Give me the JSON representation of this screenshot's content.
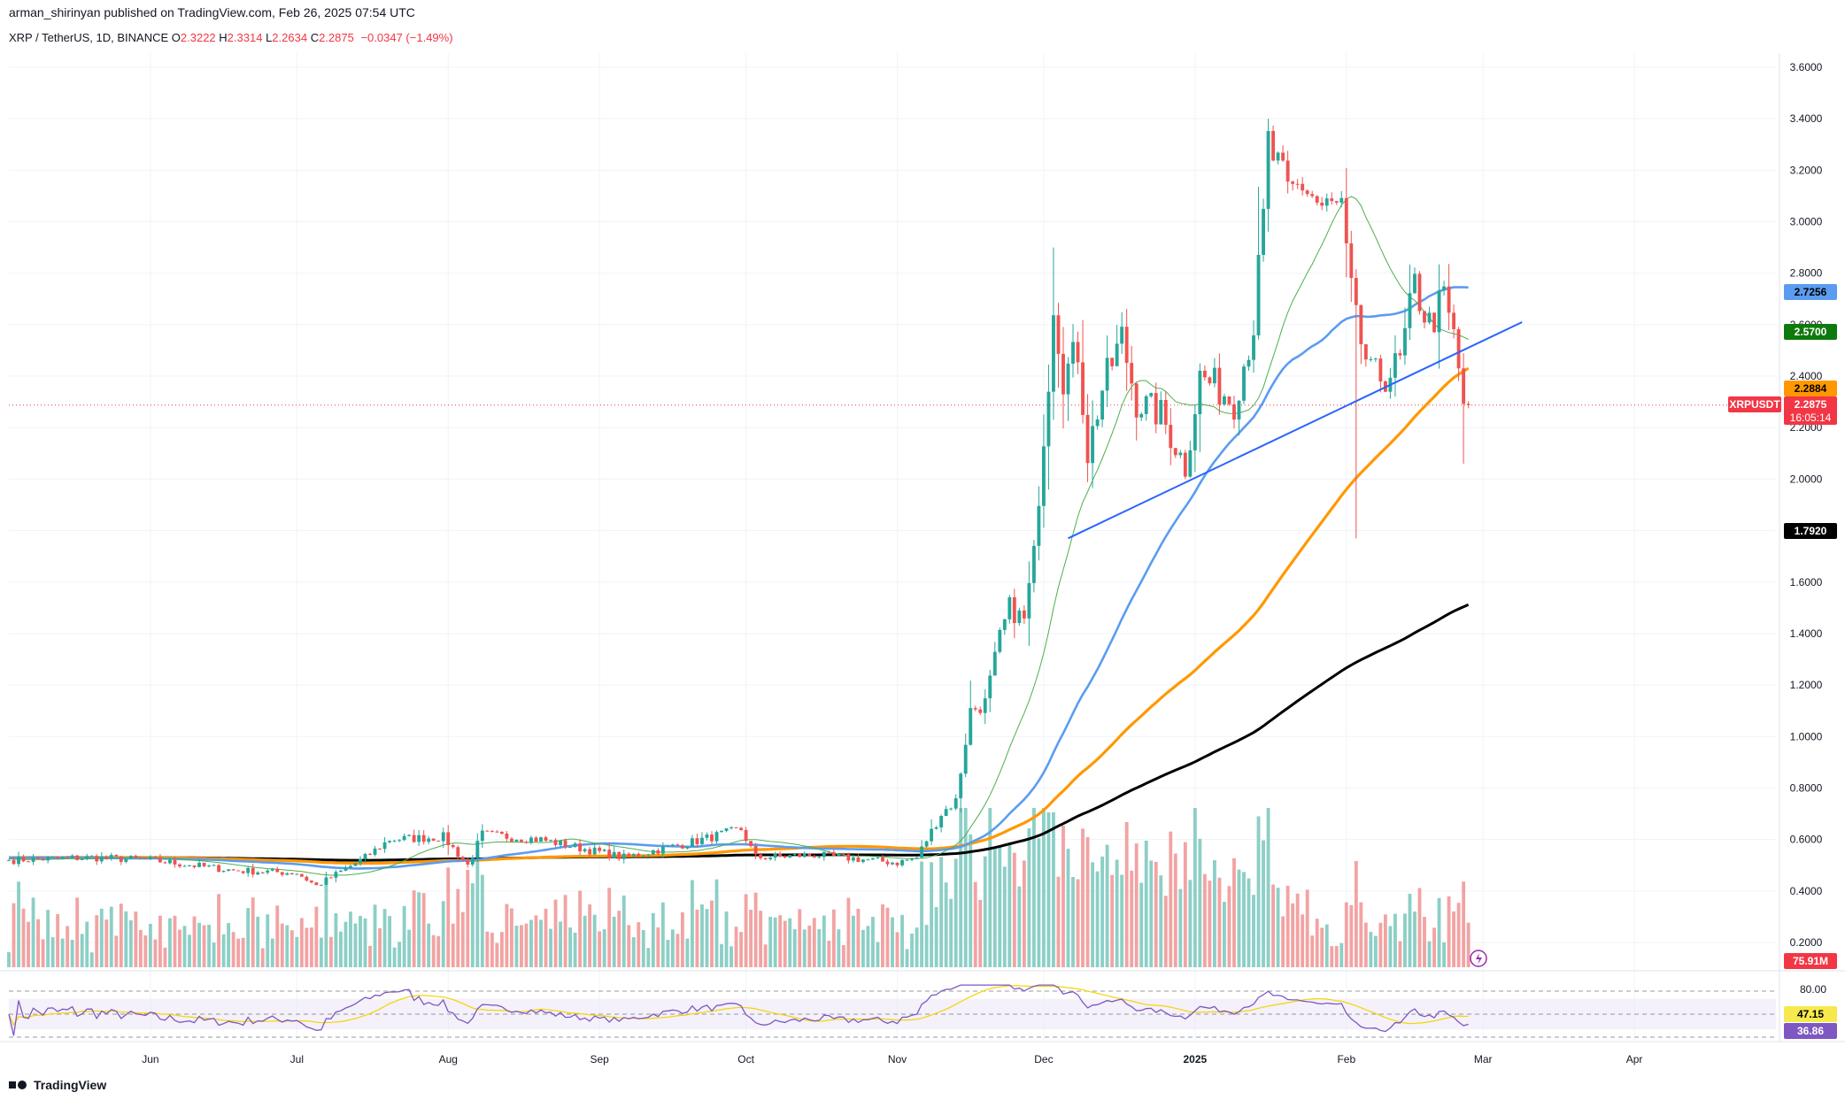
{
  "header": {
    "published": "arman_shirinyan published on TradingView.com, Feb 26, 2025 07:54 UTC",
    "symbol": "XRP / TetherUS, 1D, BINANCE",
    "o_label": "O",
    "o": "2.3222",
    "h_label": "H",
    "h": "2.3314",
    "l_label": "L",
    "l": "2.2634",
    "c_label": "C",
    "c": "2.2875",
    "change": "−0.0347 (−1.49%)"
  },
  "footer": {
    "brand": "TradingView"
  },
  "colors": {
    "up": "#26a69a",
    "down": "#ef5350",
    "vol_up": "#8ccfc6",
    "vol_down": "#f2a3a3",
    "ma20": "#4caf50",
    "ma50": "#5b9cf0",
    "ma100": "#ff9800",
    "ma200": "#000000",
    "trendline": "#2962ff",
    "rsi": "#7e57c2",
    "rsi_ma": "#f5d400"
  },
  "chart_data": {
    "type": "candlestick",
    "symbol": "XRPUSDT",
    "interval": "1D",
    "ylim": [
      0.0,
      3.72
    ],
    "y_ticks": [
      "0.2000",
      "0.4000",
      "0.6000",
      "0.8000",
      "1.0000",
      "1.2000",
      "1.4000",
      "1.6000",
      "1.8000",
      "2.0000",
      "2.2000",
      "2.4000",
      "2.6000",
      "2.8000",
      "3.0000",
      "3.2000",
      "3.4000",
      "3.6000"
    ],
    "x_labels": [
      {
        "label": "Jun",
        "date": "2024-06-01"
      },
      {
        "label": "Jul",
        "date": "2024-07-01"
      },
      {
        "label": "Aug",
        "date": "2024-08-01"
      },
      {
        "label": "Sep",
        "date": "2024-09-01"
      },
      {
        "label": "Oct",
        "date": "2024-10-01"
      },
      {
        "label": "Nov",
        "date": "2024-11-01"
      },
      {
        "label": "Dec",
        "date": "2024-12-01"
      },
      {
        "label": "2025",
        "date": "2025-01-01"
      },
      {
        "label": "Feb",
        "date": "2025-02-01"
      },
      {
        "label": "Mar",
        "date": "2025-03-01"
      },
      {
        "label": "Apr",
        "date": "2025-04-01"
      }
    ],
    "xlim": [
      "2024-05-03",
      "2025-04-30"
    ],
    "anchors": [
      {
        "date": "2024-05-03",
        "close": 0.52
      },
      {
        "date": "2024-05-20",
        "close": 0.53
      },
      {
        "date": "2024-06-01",
        "close": 0.52
      },
      {
        "date": "2024-06-18",
        "close": 0.48
      },
      {
        "date": "2024-07-01",
        "close": 0.47
      },
      {
        "date": "2024-07-05",
        "close": 0.42
      },
      {
        "date": "2024-07-15",
        "close": 0.53
      },
      {
        "date": "2024-07-20",
        "close": 0.6
      },
      {
        "date": "2024-07-31",
        "close": 0.61
      },
      {
        "date": "2024-08-05",
        "close": 0.5
      },
      {
        "date": "2024-08-08",
        "close": 0.62
      },
      {
        "date": "2024-08-20",
        "close": 0.6
      },
      {
        "date": "2024-09-06",
        "close": 0.53
      },
      {
        "date": "2024-09-20",
        "close": 0.59
      },
      {
        "date": "2024-09-30",
        "close": 0.64
      },
      {
        "date": "2024-10-03",
        "close": 0.53
      },
      {
        "date": "2024-10-15",
        "close": 0.54
      },
      {
        "date": "2024-11-01",
        "close": 0.51
      },
      {
        "date": "2024-11-05",
        "close": 0.53
      },
      {
        "date": "2024-11-10",
        "close": 0.7
      },
      {
        "date": "2024-11-13",
        "close": 0.75
      },
      {
        "date": "2024-11-16",
        "close": 1.1
      },
      {
        "date": "2024-11-19",
        "close": 1.13
      },
      {
        "date": "2024-11-22",
        "close": 1.38
      },
      {
        "date": "2024-11-24",
        "close": 1.5
      },
      {
        "date": "2024-11-27",
        "close": 1.45
      },
      {
        "date": "2024-11-29",
        "close": 1.7
      },
      {
        "date": "2024-11-30",
        "close": 1.95
      },
      {
        "date": "2024-12-02",
        "close": 2.4
      },
      {
        "date": "2024-12-03",
        "close": 2.7
      },
      {
        "date": "2024-12-05",
        "close": 2.4
      },
      {
        "date": "2024-12-08",
        "close": 2.5
      },
      {
        "date": "2024-12-10",
        "close": 2.1
      },
      {
        "date": "2024-12-13",
        "close": 2.35
      },
      {
        "date": "2024-12-17",
        "close": 2.55
      },
      {
        "date": "2024-12-20",
        "close": 2.3
      },
      {
        "date": "2024-12-25",
        "close": 2.25
      },
      {
        "date": "2024-12-30",
        "close": 2.05
      },
      {
        "date": "2025-01-02",
        "close": 2.4
      },
      {
        "date": "2025-01-06",
        "close": 2.35
      },
      {
        "date": "2025-01-09",
        "close": 2.3
      },
      {
        "date": "2025-01-13",
        "close": 2.6
      },
      {
        "date": "2025-01-15",
        "close": 3.0
      },
      {
        "date": "2025-01-16",
        "close": 3.3
      },
      {
        "date": "2025-01-18",
        "close": 3.2
      },
      {
        "date": "2025-01-20",
        "close": 3.1
      },
      {
        "date": "2025-01-23",
        "close": 3.15
      },
      {
        "date": "2025-01-27",
        "close": 3.05
      },
      {
        "date": "2025-01-31",
        "close": 3.05
      },
      {
        "date": "2025-02-01",
        "close": 2.85
      },
      {
        "date": "2025-02-03",
        "close": 2.6
      },
      {
        "date": "2025-02-06",
        "close": 2.4
      },
      {
        "date": "2025-02-09",
        "close": 2.4
      },
      {
        "date": "2025-02-12",
        "close": 2.45
      },
      {
        "date": "2025-02-15",
        "close": 2.75
      },
      {
        "date": "2025-02-18",
        "close": 2.6
      },
      {
        "date": "2025-02-21",
        "close": 2.7
      },
      {
        "date": "2025-02-23",
        "close": 2.55
      },
      {
        "date": "2025-02-25",
        "close": 2.3
      },
      {
        "date": "2025-02-26",
        "close": 2.2875
      }
    ],
    "spikes": [
      {
        "date": "2024-12-03",
        "high": 2.9
      },
      {
        "date": "2025-01-16",
        "high": 3.4
      },
      {
        "date": "2025-02-03",
        "low": 1.77
      },
      {
        "date": "2025-02-25",
        "low": 2.06
      }
    ],
    "moving_averages": [
      {
        "name": "MA 20",
        "value": "2.5700",
        "color": "#4caf50"
      },
      {
        "name": "MA 50",
        "value": "2.7256",
        "color": "#5b9cf0"
      },
      {
        "name": "MA 100",
        "value": "2.2884",
        "color": "#ff9800"
      },
      {
        "name": "MA 200",
        "value": "1.7920",
        "color": "#000000"
      }
    ],
    "trendline": {
      "from": {
        "date": "2024-12-06",
        "price": 1.77
      },
      "to": {
        "date": "2025-03-09",
        "price": 2.61
      }
    },
    "last_price": {
      "label": "XRPUSDT",
      "value": "2.2875",
      "countdown": "16:05:14"
    },
    "volume": {
      "last": "75.91M",
      "peak_dates": [
        "2024-12-02",
        "2025-02-03",
        "2024-08-05",
        "2024-11-16"
      ]
    },
    "rsi": {
      "upper": "80.00",
      "value_ma": "47.15",
      "value": "36.86",
      "band_low": 30,
      "band_high": 70
    }
  },
  "badges": {
    "ma50": "2.7256",
    "ma20": "2.5700",
    "ma100": "2.2884",
    "price_label": "XRPUSDT",
    "price": "2.2875",
    "countdown": "16:05:14",
    "ma200": "1.7920",
    "volume": "75.91M",
    "rsi_upper": "80.00",
    "rsi_ma": "47.15",
    "rsi": "36.86"
  }
}
